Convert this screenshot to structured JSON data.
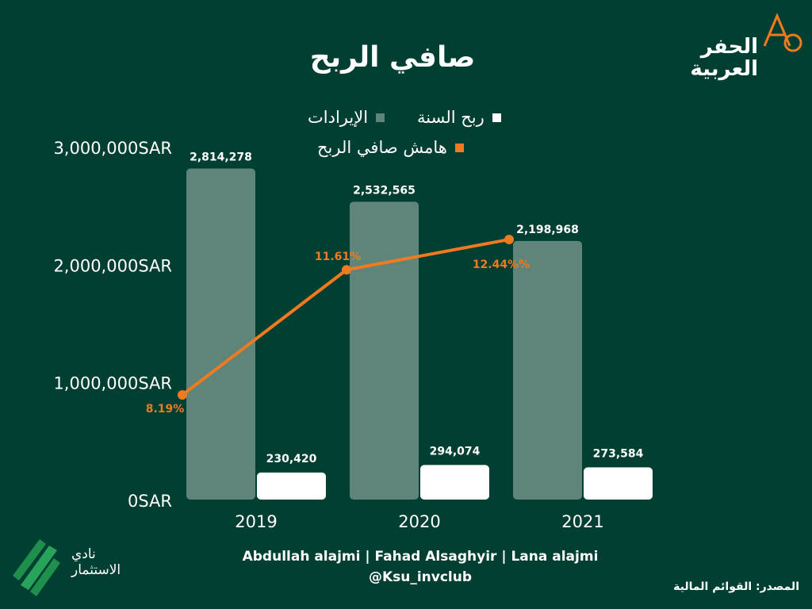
{
  "title": "صافي الربح",
  "logo": {
    "line1": "الحفر",
    "line2": "العربية"
  },
  "club": {
    "line1": "نادي",
    "line2": "الاستثمار"
  },
  "credits": {
    "authors": "Abdullah alajmi | Fahad Alsaghyir | Lana alajmi",
    "handle": "@Ksu_invclub"
  },
  "source": "المصدر: القوائم المالية",
  "colors": {
    "background": "#023f33",
    "revenue": "#5f857b",
    "profit": "#ffffff",
    "margin": "#f07a1f"
  },
  "chart_data": {
    "type": "bar",
    "categories": [
      "2019",
      "2020",
      "2021"
    ],
    "series": [
      {
        "name": "الإيرادات",
        "values": [
          2814278,
          2532565,
          2198968
        ],
        "labels": [
          "2,814,278",
          "2,532,565",
          "2,198,968"
        ]
      },
      {
        "name": "ربح السنة",
        "values": [
          230420,
          294074,
          273584
        ],
        "labels": [
          "230,420",
          "294,074",
          "273,584"
        ]
      }
    ],
    "line_series": {
      "name": "هامش صافي الربح",
      "values": [
        8.19,
        11.61,
        12.44
      ],
      "labels": [
        "8.19%",
        "11.61%",
        "12.44%%"
      ]
    },
    "y_ticks": [
      "0SAR",
      "1,000,000SAR",
      "2,000,000SAR",
      "3,000,000SAR"
    ],
    "ylim": [
      0,
      3000000
    ],
    "legend_position": "top"
  }
}
